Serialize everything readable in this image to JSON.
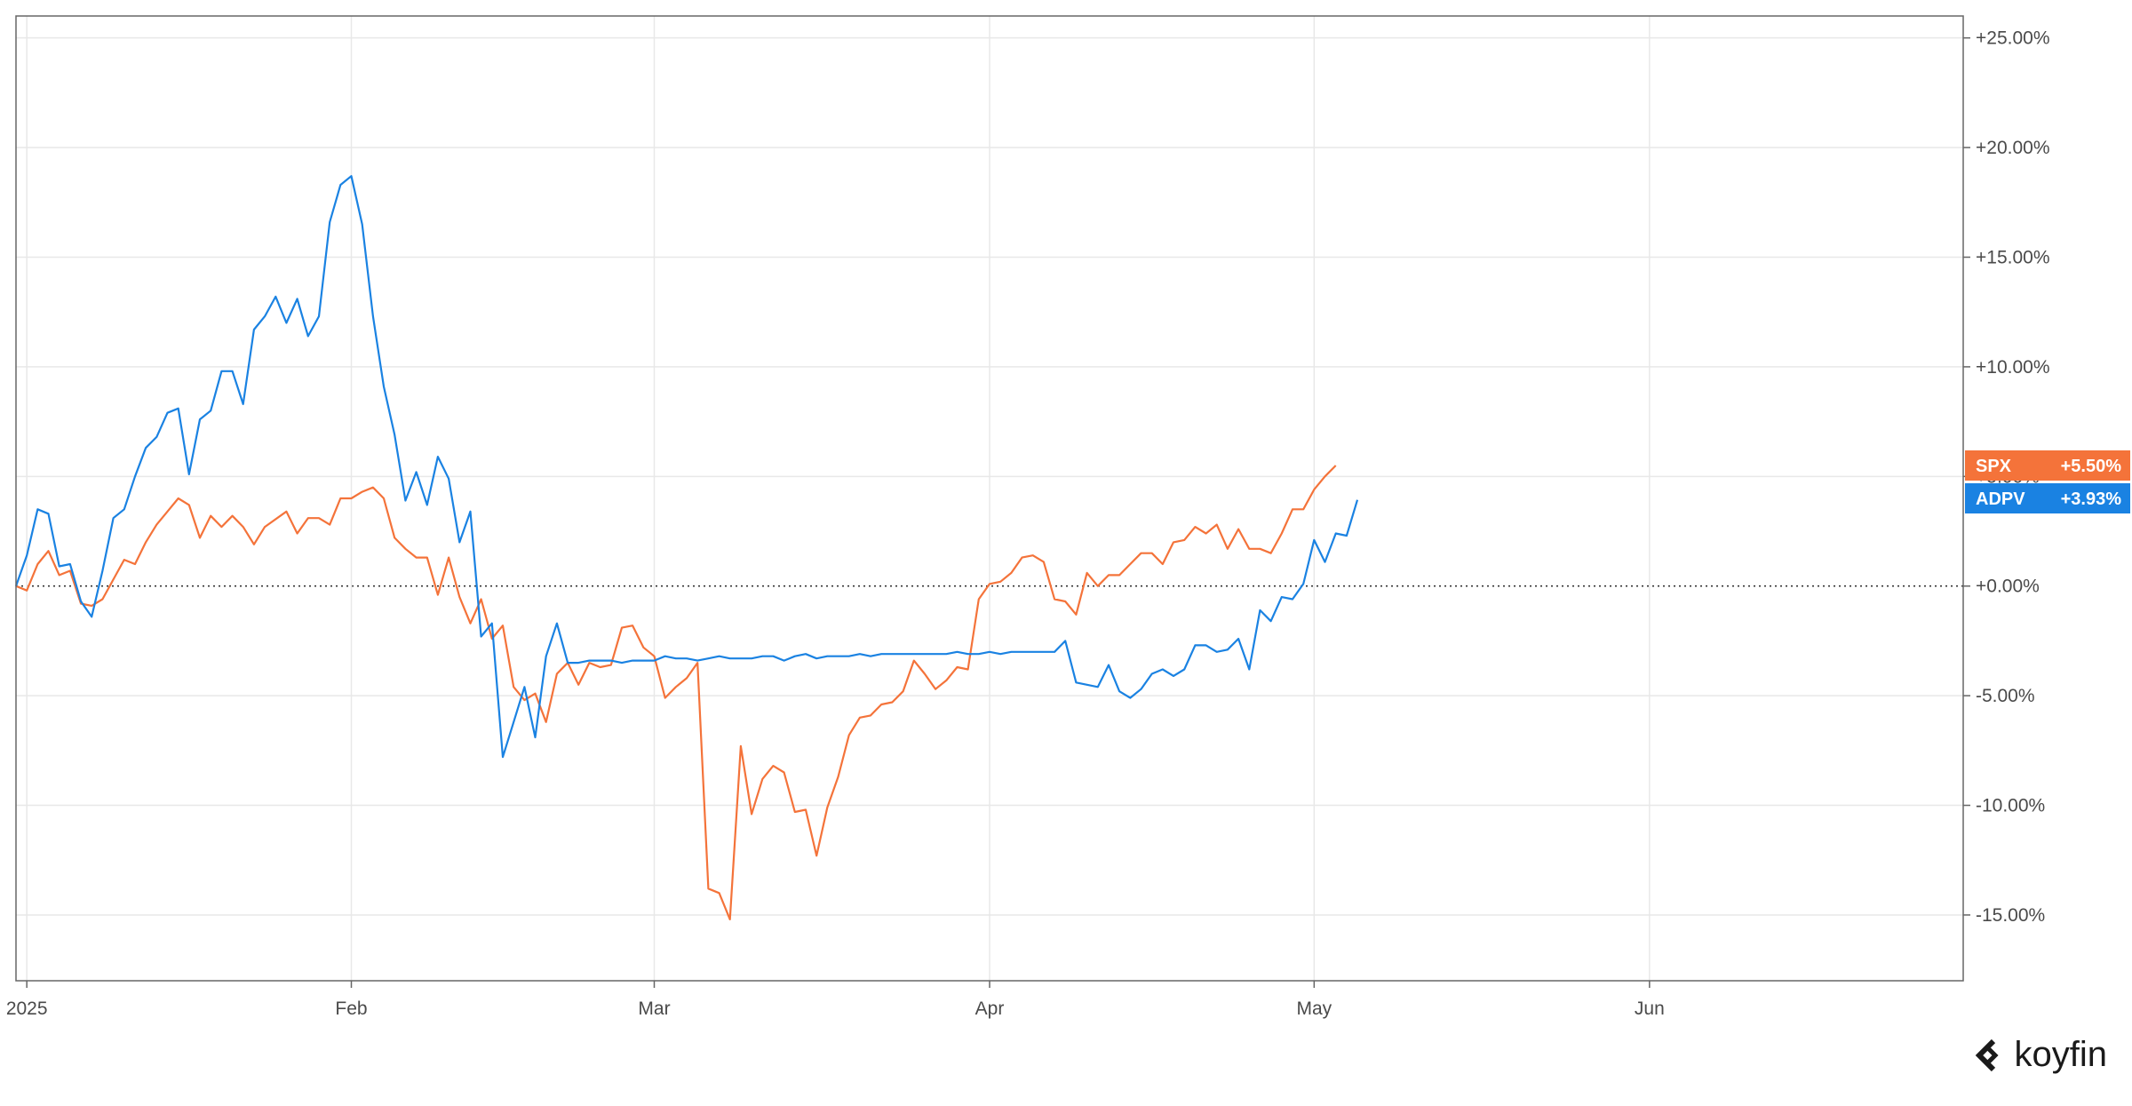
{
  "chart_data": {
    "type": "line",
    "title": "",
    "xlabel": "",
    "ylabel": "",
    "ylim": [
      -18,
      26
    ],
    "y_ticks": [
      25,
      20,
      15,
      10,
      5,
      0,
      -5,
      -10,
      -15
    ],
    "y_tick_labels": [
      "+25.00%",
      "+20.00%",
      "+15.00%",
      "+10.00%",
      "+5.00%",
      "+0.00%",
      "-5.00%",
      "-10.00%",
      "-15.00%"
    ],
    "x_ticks": [
      {
        "label": "2025",
        "x": "2025-01-02"
      },
      {
        "label": "Feb",
        "x": "2025-02-01"
      },
      {
        "label": "Mar",
        "x": "2025-03-01"
      },
      {
        "label": "Apr",
        "x": "2025-04-01"
      },
      {
        "label": "May",
        "x": "2025-05-01"
      },
      {
        "label": "Jun",
        "x": "2025-06-01"
      }
    ],
    "x_range": [
      "2025-01-01",
      "2025-06-30"
    ],
    "zero_line": "dotted",
    "grid": true,
    "legend": "right-edge badges",
    "series": [
      {
        "name": "SPX",
        "color": "#f4733a",
        "end_label": "+5.50%",
        "points": [
          [
            "2025-01-01",
            0.0
          ],
          [
            "2025-01-02",
            -0.2
          ],
          [
            "2025-01-03",
            1.0
          ],
          [
            "2025-01-04",
            1.6
          ],
          [
            "2025-01-05",
            0.5
          ],
          [
            "2025-01-06",
            0.7
          ],
          [
            "2025-01-07",
            -0.8
          ],
          [
            "2025-01-08",
            -0.9
          ],
          [
            "2025-01-09",
            -0.6
          ],
          [
            "2025-01-11",
            1.2
          ],
          [
            "2025-01-12",
            1.0
          ],
          [
            "2025-01-13",
            2.0
          ],
          [
            "2025-01-14",
            2.8
          ],
          [
            "2025-01-15",
            3.4
          ],
          [
            "2025-01-16",
            4.0
          ],
          [
            "2025-01-17",
            3.7
          ],
          [
            "2025-01-18",
            2.2
          ],
          [
            "2025-01-19",
            3.2
          ],
          [
            "2025-01-20",
            2.7
          ],
          [
            "2025-01-21",
            3.2
          ],
          [
            "2025-01-22",
            2.7
          ],
          [
            "2025-01-23",
            1.9
          ],
          [
            "2025-01-24",
            2.7
          ],
          [
            "2025-01-26",
            3.4
          ],
          [
            "2025-01-27",
            2.4
          ],
          [
            "2025-01-28",
            3.1
          ],
          [
            "2025-01-29",
            3.1
          ],
          [
            "2025-01-30",
            2.8
          ],
          [
            "2025-01-31",
            4.0
          ],
          [
            "2025-02-01",
            4.0
          ],
          [
            "2025-02-02",
            4.3
          ],
          [
            "2025-02-03",
            4.5
          ],
          [
            "2025-02-04",
            4.0
          ],
          [
            "2025-02-05",
            2.2
          ],
          [
            "2025-02-06",
            1.7
          ],
          [
            "2025-02-07",
            1.3
          ],
          [
            "2025-02-08",
            1.3
          ],
          [
            "2025-02-09",
            -0.4
          ],
          [
            "2025-02-10",
            1.3
          ],
          [
            "2025-02-11",
            -0.5
          ],
          [
            "2025-02-12",
            -1.7
          ],
          [
            "2025-02-13",
            -0.6
          ],
          [
            "2025-02-14",
            -2.4
          ],
          [
            "2025-02-15",
            -1.8
          ],
          [
            "2025-02-16",
            -4.6
          ],
          [
            "2025-02-17",
            -5.2
          ],
          [
            "2025-02-18",
            -4.9
          ],
          [
            "2025-02-19",
            -6.2
          ],
          [
            "2025-02-20",
            -4.0
          ],
          [
            "2025-02-21",
            -3.5
          ],
          [
            "2025-02-22",
            -4.5
          ],
          [
            "2025-02-23",
            -3.5
          ],
          [
            "2025-02-24",
            -3.7
          ],
          [
            "2025-02-25",
            -3.6
          ],
          [
            "2025-02-26",
            -1.9
          ],
          [
            "2025-02-27",
            -1.8
          ],
          [
            "2025-02-28",
            -2.8
          ],
          [
            "2025-03-01",
            -3.2
          ],
          [
            "2025-03-02",
            -5.1
          ],
          [
            "2025-03-03",
            -4.6
          ],
          [
            "2025-03-04",
            -4.2
          ],
          [
            "2025-03-05",
            -3.5
          ],
          [
            "2025-03-06",
            -13.8
          ],
          [
            "2025-03-07",
            -14.0
          ],
          [
            "2025-03-08",
            -15.2
          ],
          [
            "2025-03-09",
            -7.3
          ],
          [
            "2025-03-10",
            -10.4
          ],
          [
            "2025-03-11",
            -8.8
          ],
          [
            "2025-03-12",
            -8.2
          ],
          [
            "2025-03-13",
            -8.5
          ],
          [
            "2025-03-14",
            -10.3
          ],
          [
            "2025-03-15",
            -10.2
          ],
          [
            "2025-03-16",
            -12.3
          ],
          [
            "2025-03-17",
            -10.1
          ],
          [
            "2025-03-18",
            -8.7
          ],
          [
            "2025-03-19",
            -6.8
          ],
          [
            "2025-03-20",
            -6.0
          ],
          [
            "2025-03-21",
            -5.9
          ],
          [
            "2025-03-22",
            -5.4
          ],
          [
            "2025-03-23",
            -5.3
          ],
          [
            "2025-03-24",
            -4.8
          ],
          [
            "2025-03-25",
            -3.4
          ],
          [
            "2025-03-26",
            -4.0
          ],
          [
            "2025-03-27",
            -4.7
          ],
          [
            "2025-03-28",
            -4.3
          ],
          [
            "2025-03-29",
            -3.7
          ],
          [
            "2025-03-30",
            -3.8
          ],
          [
            "2025-03-31",
            -0.6
          ],
          [
            "2025-04-01",
            0.1
          ],
          [
            "2025-04-02",
            0.2
          ],
          [
            "2025-04-03",
            0.6
          ],
          [
            "2025-04-04",
            1.3
          ],
          [
            "2025-04-05",
            1.4
          ],
          [
            "2025-04-06",
            1.1
          ],
          [
            "2025-04-07",
            -0.6
          ],
          [
            "2025-04-08",
            -0.7
          ],
          [
            "2025-04-09",
            -1.3
          ],
          [
            "2025-04-10",
            0.6
          ],
          [
            "2025-04-11",
            0.0
          ],
          [
            "2025-04-12",
            0.5
          ],
          [
            "2025-04-13",
            0.5
          ],
          [
            "2025-04-14",
            1.0
          ],
          [
            "2025-04-15",
            1.5
          ],
          [
            "2025-04-16",
            1.5
          ],
          [
            "2025-04-17",
            1.0
          ],
          [
            "2025-04-18",
            2.0
          ],
          [
            "2025-04-19",
            2.1
          ],
          [
            "2025-04-20",
            2.7
          ],
          [
            "2025-04-21",
            2.4
          ],
          [
            "2025-04-22",
            2.8
          ],
          [
            "2025-04-23",
            1.7
          ],
          [
            "2025-04-24",
            2.6
          ],
          [
            "2025-04-25",
            1.7
          ],
          [
            "2025-04-26",
            1.7
          ],
          [
            "2025-04-27",
            1.5
          ],
          [
            "2025-04-28",
            2.4
          ],
          [
            "2025-04-29",
            3.5
          ],
          [
            "2025-04-30",
            3.5
          ],
          [
            "2025-05-01",
            4.4
          ],
          [
            "2025-05-02",
            5.0
          ],
          [
            "2025-05-03",
            5.5
          ]
        ]
      },
      {
        "name": "ADPV",
        "color": "#1a82e2",
        "end_label": "+3.93%",
        "points": [
          [
            "2025-01-01",
            0.0
          ],
          [
            "2025-01-02",
            1.4
          ],
          [
            "2025-01-03",
            3.5
          ],
          [
            "2025-01-04",
            3.3
          ],
          [
            "2025-01-05",
            0.9
          ],
          [
            "2025-01-06",
            1.0
          ],
          [
            "2025-01-07",
            -0.7
          ],
          [
            "2025-01-08",
            -1.4
          ],
          [
            "2025-01-09",
            0.7
          ],
          [
            "2025-01-10",
            3.1
          ],
          [
            "2025-01-11",
            3.5
          ],
          [
            "2025-01-12",
            5.0
          ],
          [
            "2025-01-13",
            6.3
          ],
          [
            "2025-01-14",
            6.8
          ],
          [
            "2025-01-15",
            7.9
          ],
          [
            "2025-01-16",
            8.1
          ],
          [
            "2025-01-17",
            5.1
          ],
          [
            "2025-01-18",
            7.6
          ],
          [
            "2025-01-19",
            8.0
          ],
          [
            "2025-01-20",
            9.8
          ],
          [
            "2025-01-21",
            9.8
          ],
          [
            "2025-01-22",
            8.3
          ],
          [
            "2025-01-23",
            11.7
          ],
          [
            "2025-01-24",
            12.3
          ],
          [
            "2025-01-25",
            13.2
          ],
          [
            "2025-01-26",
            12.0
          ],
          [
            "2025-01-27",
            13.1
          ],
          [
            "2025-01-28",
            11.4
          ],
          [
            "2025-01-29",
            12.3
          ],
          [
            "2025-01-30",
            16.6
          ],
          [
            "2025-01-31",
            18.3
          ],
          [
            "2025-02-01",
            18.7
          ],
          [
            "2025-02-02",
            16.5
          ],
          [
            "2025-02-03",
            12.3
          ],
          [
            "2025-02-04",
            9.1
          ],
          [
            "2025-02-05",
            6.9
          ],
          [
            "2025-02-06",
            3.9
          ],
          [
            "2025-02-07",
            5.2
          ],
          [
            "2025-02-08",
            3.7
          ],
          [
            "2025-02-09",
            5.9
          ],
          [
            "2025-02-10",
            4.9
          ],
          [
            "2025-02-11",
            2.0
          ],
          [
            "2025-02-12",
            3.4
          ],
          [
            "2025-02-13",
            -2.3
          ],
          [
            "2025-02-14",
            -1.7
          ],
          [
            "2025-02-15",
            -7.8
          ],
          [
            "2025-02-16",
            -6.2
          ],
          [
            "2025-02-17",
            -4.6
          ],
          [
            "2025-02-18",
            -6.9
          ],
          [
            "2025-02-19",
            -3.2
          ],
          [
            "2025-02-20",
            -1.7
          ],
          [
            "2025-02-21",
            -3.5
          ],
          [
            "2025-02-22",
            -3.5
          ],
          [
            "2025-02-23",
            -3.4
          ],
          [
            "2025-02-24",
            -3.4
          ],
          [
            "2025-02-25",
            -3.4
          ],
          [
            "2025-02-26",
            -3.5
          ],
          [
            "2025-02-27",
            -3.4
          ],
          [
            "2025-02-28",
            -3.4
          ],
          [
            "2025-03-01",
            -3.4
          ],
          [
            "2025-03-02",
            -3.2
          ],
          [
            "2025-03-03",
            -3.3
          ],
          [
            "2025-03-04",
            -3.3
          ],
          [
            "2025-03-05",
            -3.4
          ],
          [
            "2025-03-06",
            -3.3
          ],
          [
            "2025-03-07",
            -3.2
          ],
          [
            "2025-03-08",
            -3.3
          ],
          [
            "2025-03-09",
            -3.3
          ],
          [
            "2025-03-10",
            -3.3
          ],
          [
            "2025-03-11",
            -3.2
          ],
          [
            "2025-03-12",
            -3.2
          ],
          [
            "2025-03-13",
            -3.4
          ],
          [
            "2025-03-14",
            -3.2
          ],
          [
            "2025-03-15",
            -3.1
          ],
          [
            "2025-03-16",
            -3.3
          ],
          [
            "2025-03-17",
            -3.2
          ],
          [
            "2025-03-18",
            -3.2
          ],
          [
            "2025-03-19",
            -3.2
          ],
          [
            "2025-03-20",
            -3.1
          ],
          [
            "2025-03-21",
            -3.2
          ],
          [
            "2025-03-22",
            -3.1
          ],
          [
            "2025-03-23",
            -3.1
          ],
          [
            "2025-03-24",
            -3.1
          ],
          [
            "2025-03-25",
            -3.1
          ],
          [
            "2025-03-26",
            -3.1
          ],
          [
            "2025-03-27",
            -3.1
          ],
          [
            "2025-03-28",
            -3.1
          ],
          [
            "2025-03-29",
            -3.0
          ],
          [
            "2025-03-30",
            -3.1
          ],
          [
            "2025-03-31",
            -3.1
          ],
          [
            "2025-04-01",
            -3.0
          ],
          [
            "2025-04-02",
            -3.1
          ],
          [
            "2025-04-03",
            -3.0
          ],
          [
            "2025-04-04",
            -3.0
          ],
          [
            "2025-04-05",
            -3.0
          ],
          [
            "2025-04-06",
            -3.0
          ],
          [
            "2025-04-07",
            -3.0
          ],
          [
            "2025-04-08",
            -2.5
          ],
          [
            "2025-04-09",
            -4.4
          ],
          [
            "2025-04-10",
            -4.5
          ],
          [
            "2025-04-11",
            -4.6
          ],
          [
            "2025-04-12",
            -3.6
          ],
          [
            "2025-04-13",
            -4.8
          ],
          [
            "2025-04-14",
            -5.1
          ],
          [
            "2025-04-15",
            -4.7
          ],
          [
            "2025-04-16",
            -4.0
          ],
          [
            "2025-04-17",
            -3.8
          ],
          [
            "2025-04-18",
            -4.1
          ],
          [
            "2025-04-19",
            -3.8
          ],
          [
            "2025-04-20",
            -2.7
          ],
          [
            "2025-04-21",
            -2.7
          ],
          [
            "2025-04-22",
            -3.0
          ],
          [
            "2025-04-23",
            -2.9
          ],
          [
            "2025-04-24",
            -2.4
          ],
          [
            "2025-04-25",
            -3.8
          ],
          [
            "2025-04-26",
            -1.1
          ],
          [
            "2025-04-27",
            -1.6
          ],
          [
            "2025-04-28",
            -0.5
          ],
          [
            "2025-04-29",
            -0.6
          ],
          [
            "2025-04-30",
            0.1
          ],
          [
            "2025-05-01",
            2.1
          ],
          [
            "2025-05-02",
            1.1
          ],
          [
            "2025-05-03",
            2.4
          ],
          [
            "2025-05-04",
            2.3
          ],
          [
            "2025-05-05",
            3.93
          ]
        ]
      }
    ]
  },
  "colors": {
    "grid": "#e8e8e8",
    "axis": "#666666",
    "spx": "#f4733a",
    "adpv": "#1a82e2"
  },
  "branding": {
    "logo_icon": "koyfin-chevron-icon",
    "logo_text": "koyfin"
  }
}
